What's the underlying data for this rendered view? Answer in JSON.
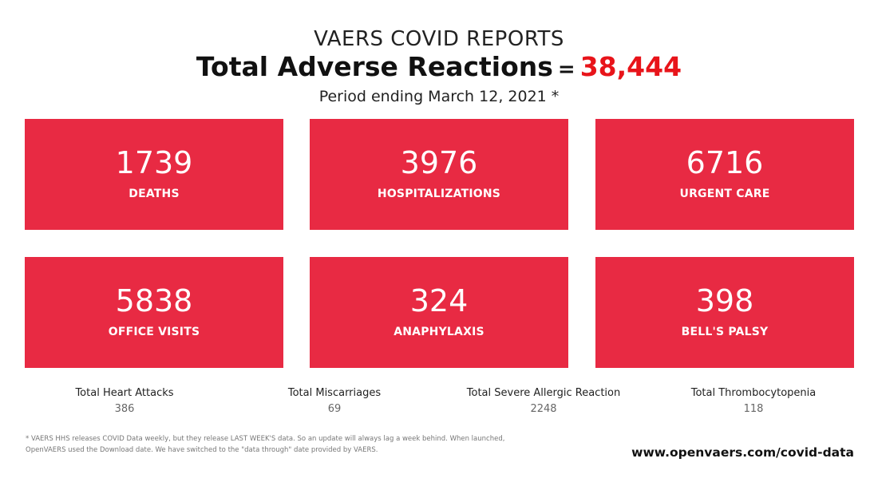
{
  "header": {
    "kicker": "VAERS COVID REPORTS",
    "headline": "Total Adverse Reactions",
    "equals": "=",
    "total": "38,444",
    "period": "Period ending March 12, 2021 *"
  },
  "colors": {
    "card_background": "#e82a43",
    "total_accent": "#e8141a"
  },
  "cards": [
    {
      "value": "1739",
      "label": "DEATHS"
    },
    {
      "value": "3976",
      "label": "HOSPITALIZATIONS"
    },
    {
      "value": "6716",
      "label": "URGENT CARE"
    },
    {
      "value": "5838",
      "label": "OFFICE VISITS"
    },
    {
      "value": "324",
      "label": "ANAPHYLAXIS"
    },
    {
      "value": "398",
      "label": "BELL'S PALSY"
    }
  ],
  "stats": [
    {
      "label": "Total Heart Attacks",
      "value": "386"
    },
    {
      "label": "Total Miscarriages",
      "value": "69"
    },
    {
      "label": "Total Severe Allergic Reaction",
      "value": "2248"
    },
    {
      "label": "Total Thrombocytopenia",
      "value": "118"
    }
  ],
  "footnote": "* VAERS HHS releases COVID Data weekly, but they release LAST WEEK'S data. So an update will always lag a week behind. When launched, OpenVAERS used the Download date. We have switched to the \"data through\" date provided by VAERS.",
  "website": "www.openvaers.com/covid-data"
}
